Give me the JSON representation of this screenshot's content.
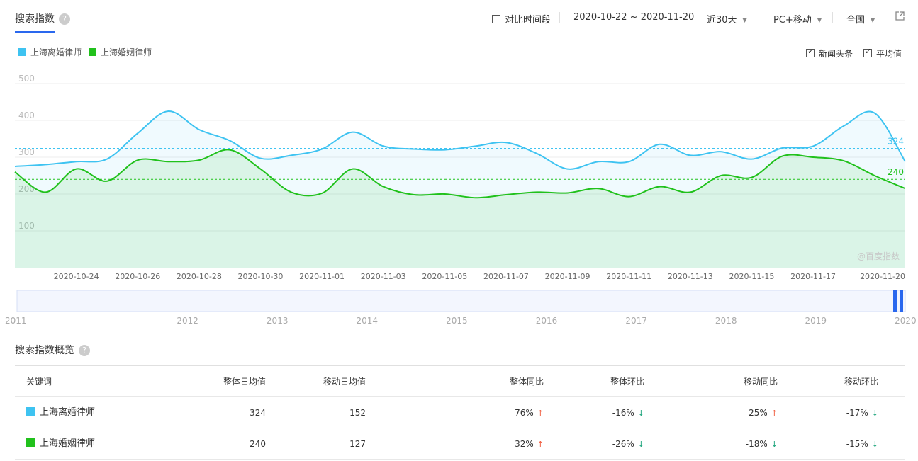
{
  "header": {
    "title": "搜索指数",
    "help": "?",
    "compare_label": "对比时间段",
    "date_range": "2020-10-22 ~ 2020-11-20",
    "period": "近30天",
    "device": "PC+移动",
    "region": "全国"
  },
  "legend": [
    {
      "name": "上海离婚律师",
      "color": "#3ec3f1"
    },
    {
      "name": "上海婚姻律师",
      "color": "#21c11c"
    }
  ],
  "options": {
    "news_label": "新闻头条",
    "avg_label": "平均值"
  },
  "watermark": "@百度指数",
  "chart_data": {
    "type": "area",
    "ylim": [
      0,
      500
    ],
    "yticks": [
      "500",
      "400",
      "300",
      "200",
      "100"
    ],
    "x_ticks": [
      "2020-10-24",
      "2020-10-26",
      "2020-10-28",
      "2020-10-30",
      "2020-11-01",
      "2020-11-03",
      "2020-11-05",
      "2020-11-07",
      "2020-11-09",
      "2020-11-11",
      "2020-11-13",
      "2020-11-15",
      "2020-11-17",
      "2020-11-20"
    ],
    "x": [
      "2020-10-22",
      "2020-10-23",
      "2020-10-24",
      "2020-10-25",
      "2020-10-26",
      "2020-10-27",
      "2020-10-28",
      "2020-10-29",
      "2020-10-30",
      "2020-10-31",
      "2020-11-01",
      "2020-11-02",
      "2020-11-03",
      "2020-11-04",
      "2020-11-05",
      "2020-11-06",
      "2020-11-07",
      "2020-11-08",
      "2020-11-09",
      "2020-11-10",
      "2020-11-11",
      "2020-11-12",
      "2020-11-13",
      "2020-11-14",
      "2020-11-15",
      "2020-11-16",
      "2020-11-17",
      "2020-11-18",
      "2020-11-19",
      "2020-11-20"
    ],
    "series": [
      {
        "name": "上海离婚律师",
        "color": "#3ec3f1",
        "average": 324,
        "values": [
          275,
          280,
          288,
          295,
          365,
          425,
          375,
          345,
          297,
          305,
          322,
          368,
          330,
          322,
          320,
          330,
          340,
          310,
          268,
          288,
          288,
          335,
          305,
          315,
          295,
          325,
          330,
          385,
          420,
          288
        ]
      },
      {
        "name": "上海婚姻律师",
        "color": "#21c11c",
        "average": 240,
        "values": [
          260,
          205,
          268,
          235,
          292,
          288,
          292,
          320,
          268,
          205,
          202,
          268,
          220,
          198,
          200,
          190,
          198,
          205,
          203,
          215,
          193,
          220,
          205,
          250,
          245,
          303,
          300,
          290,
          250,
          215
        ]
      }
    ],
    "average_labels": [
      "324",
      "240"
    ],
    "navigator_years": [
      "2011",
      "2012",
      "2013",
      "2014",
      "2015",
      "2016",
      "2017",
      "2018",
      "2019",
      "2020"
    ]
  },
  "overview": {
    "title": "搜索指数概览",
    "columns": [
      "关键词",
      "整体日均值",
      "移动日均值",
      "整体同比",
      "整体环比",
      "移动同比",
      "移动环比"
    ],
    "rows": [
      {
        "keyword": "上海离婚律师",
        "color": "#3ec3f1",
        "overall_avg": "324",
        "mobile_avg": "152",
        "overall_yoy": "76%",
        "overall_yoy_dir": "up",
        "overall_mom": "-16%",
        "overall_mom_dir": "down",
        "mobile_yoy": "25%",
        "mobile_yoy_dir": "up",
        "mobile_mom": "-17%",
        "mobile_mom_dir": "down"
      },
      {
        "keyword": "上海婚姻律师",
        "color": "#21c11c",
        "overall_avg": "240",
        "mobile_avg": "127",
        "overall_yoy": "32%",
        "overall_yoy_dir": "up",
        "overall_mom": "-26%",
        "overall_mom_dir": "down",
        "mobile_yoy": "-18%",
        "mobile_yoy_dir": "down",
        "mobile_mom": "-15%",
        "mobile_mom_dir": "down"
      }
    ]
  }
}
